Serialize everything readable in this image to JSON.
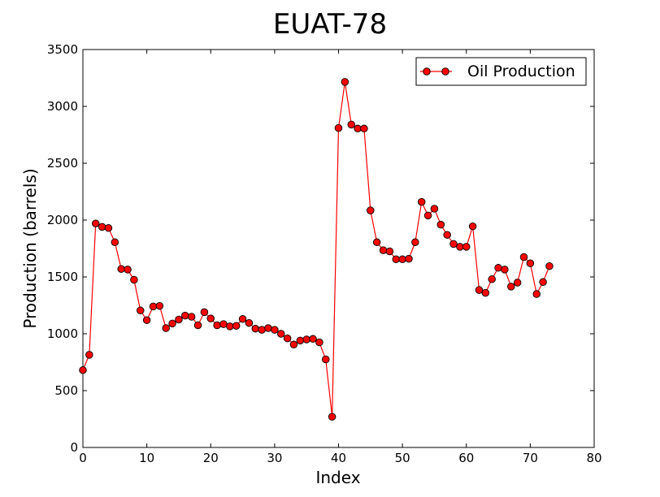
{
  "chart_data": {
    "type": "line",
    "title": "EUAT-78",
    "xlabel": "Index",
    "ylabel": "Production (barrels)",
    "xlim": [
      0,
      80
    ],
    "ylim": [
      0,
      3500
    ],
    "xticks": [
      "0",
      "10",
      "20",
      "30",
      "40",
      "50",
      "60",
      "70",
      "80"
    ],
    "yticks": [
      "0",
      "500",
      "1000",
      "1500",
      "2000",
      "2500",
      "3000",
      "3500"
    ],
    "grid": false,
    "legend_position": "top-right",
    "series": [
      {
        "name": "Oil Production",
        "color": "#ff0000",
        "marker": "circle",
        "x": [
          0,
          1,
          2,
          3,
          4,
          5,
          6,
          7,
          8,
          9,
          10,
          11,
          12,
          13,
          14,
          15,
          16,
          17,
          18,
          19,
          20,
          21,
          22,
          23,
          24,
          25,
          26,
          27,
          28,
          29,
          30,
          31,
          32,
          33,
          34,
          35,
          36,
          37,
          38,
          39,
          40,
          41,
          42,
          43,
          44,
          45,
          46,
          47,
          48,
          49,
          50,
          51,
          52,
          53,
          54,
          55,
          56,
          57,
          58,
          59,
          60,
          61,
          62,
          63,
          64,
          65,
          66,
          67,
          68,
          69,
          70,
          71,
          72,
          73
        ],
        "values": [
          680,
          815,
          1970,
          1940,
          1930,
          1805,
          1570,
          1565,
          1475,
          1205,
          1120,
          1240,
          1245,
          1050,
          1090,
          1125,
          1160,
          1150,
          1075,
          1190,
          1135,
          1075,
          1085,
          1065,
          1070,
          1130,
          1095,
          1045,
          1035,
          1050,
          1035,
          1000,
          960,
          905,
          940,
          950,
          955,
          925,
          775,
          270,
          2810,
          3215,
          2840,
          2805,
          2805,
          2085,
          1805,
          1735,
          1725,
          1655,
          1655,
          1660,
          1805,
          2160,
          2040,
          2100,
          1960,
          1870,
          1790,
          1765,
          1765,
          1945,
          1385,
          1360,
          1480,
          1580,
          1565,
          1415,
          1450,
          1675,
          1620,
          1350,
          1455,
          1595
        ]
      }
    ]
  }
}
